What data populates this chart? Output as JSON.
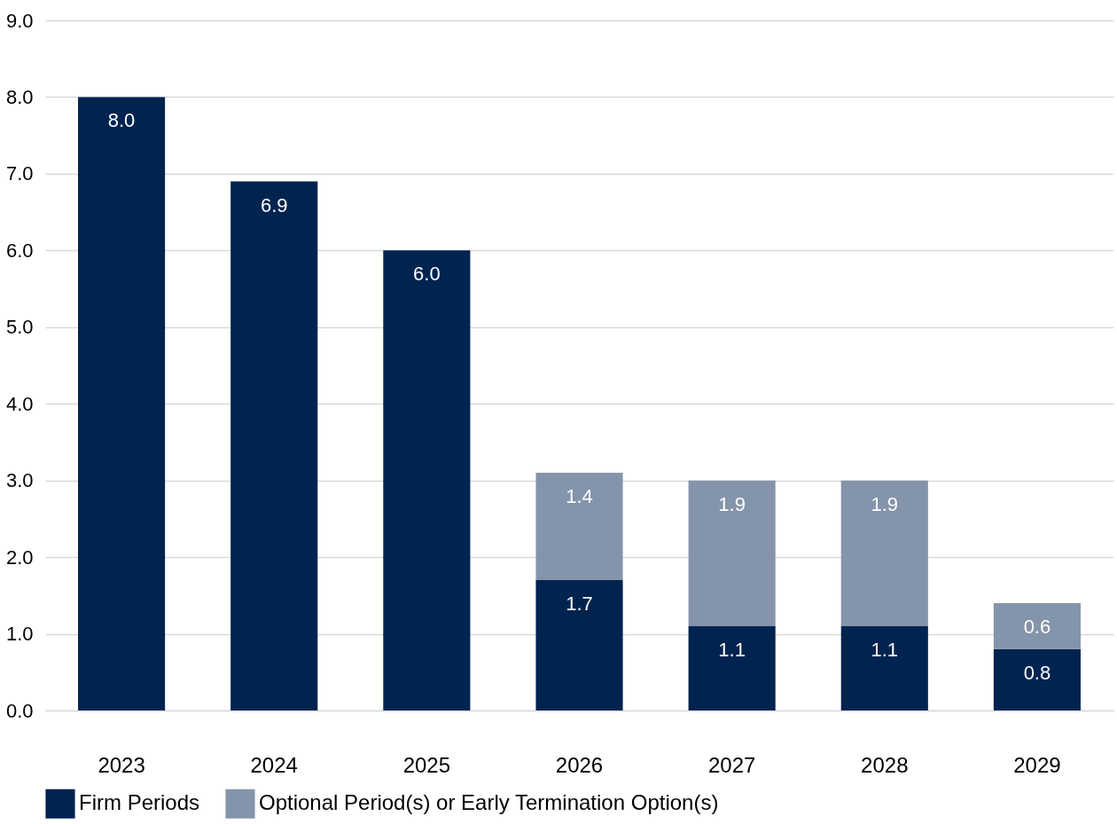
{
  "chart_data": {
    "type": "bar",
    "stacked": true,
    "categories": [
      "2023",
      "2024",
      "2025",
      "2026",
      "2027",
      "2028",
      "2029"
    ],
    "series": [
      {
        "name": "Firm Periods",
        "color": "#002350",
        "values": [
          8.0,
          6.9,
          6.0,
          1.7,
          1.1,
          1.1,
          0.8
        ],
        "value_labels": [
          "8.0",
          "6.9",
          "6.0",
          "1.7",
          "1.1",
          "1.1",
          "0.8"
        ]
      },
      {
        "name": "Optional Period(s) or Early Termination Option(s)",
        "color": "#8494ab",
        "values": [
          null,
          null,
          null,
          1.4,
          1.9,
          1.9,
          0.6
        ],
        "value_labels": [
          null,
          null,
          null,
          "1.4",
          "1.9",
          "1.9",
          "0.6"
        ]
      }
    ],
    "ylim": [
      0,
      9
    ],
    "yticks": [
      {
        "value": 0,
        "label": "0.0"
      },
      {
        "value": 1,
        "label": "1.0"
      },
      {
        "value": 2,
        "label": "2.0"
      },
      {
        "value": 3,
        "label": "3.0"
      },
      {
        "value": 4,
        "label": "4.0"
      },
      {
        "value": 5,
        "label": "5.0"
      },
      {
        "value": 6,
        "label": "6.0"
      },
      {
        "value": 7,
        "label": "7.0"
      },
      {
        "value": 8,
        "label": "8.0"
      },
      {
        "value": 9,
        "label": "9.0"
      }
    ],
    "grid": "y",
    "legend": "bottom"
  }
}
